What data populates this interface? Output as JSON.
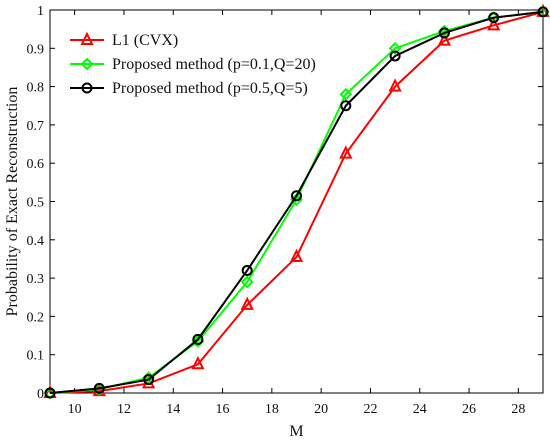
{
  "chart_data": {
    "type": "line",
    "title": "",
    "xlabel": "M",
    "ylabel": "Probability of Exact Reconstruction",
    "xlim": [
      9,
      29
    ],
    "ylim": [
      0,
      1
    ],
    "xticks": [
      10,
      12,
      14,
      16,
      18,
      20,
      22,
      24,
      26,
      28
    ],
    "yticks": [
      0,
      0.1,
      0.2,
      0.3,
      0.4,
      0.5,
      0.6,
      0.7,
      0.8,
      0.9,
      1
    ],
    "grid": false,
    "legend_position": "top-left",
    "series": [
      {
        "name": "L1 (CVX)",
        "color": "#ff0000",
        "marker": "triangle",
        "x": [
          9,
          11,
          13,
          15,
          17,
          19,
          21,
          23,
          25,
          27,
          29
        ],
        "y": [
          0.0,
          0.005,
          0.025,
          0.075,
          0.23,
          0.355,
          0.625,
          0.8,
          0.92,
          0.96,
          0.995
        ]
      },
      {
        "name": "Proposed method (p=0.1,Q=20)",
        "color": "#00ff00",
        "marker": "diamond",
        "x": [
          9,
          11,
          13,
          15,
          17,
          19,
          21,
          23,
          25,
          27,
          29
        ],
        "y": [
          0.0,
          0.01,
          0.04,
          0.135,
          0.29,
          0.505,
          0.78,
          0.9,
          0.945,
          0.98,
          0.995
        ]
      },
      {
        "name": "Proposed method (p=0.5,Q=5)",
        "color": "#000000",
        "marker": "circle",
        "x": [
          9,
          11,
          13,
          15,
          17,
          19,
          21,
          23,
          25,
          27,
          29
        ],
        "y": [
          0.0,
          0.012,
          0.035,
          0.14,
          0.32,
          0.515,
          0.75,
          0.88,
          0.94,
          0.98,
          0.995
        ]
      }
    ]
  }
}
